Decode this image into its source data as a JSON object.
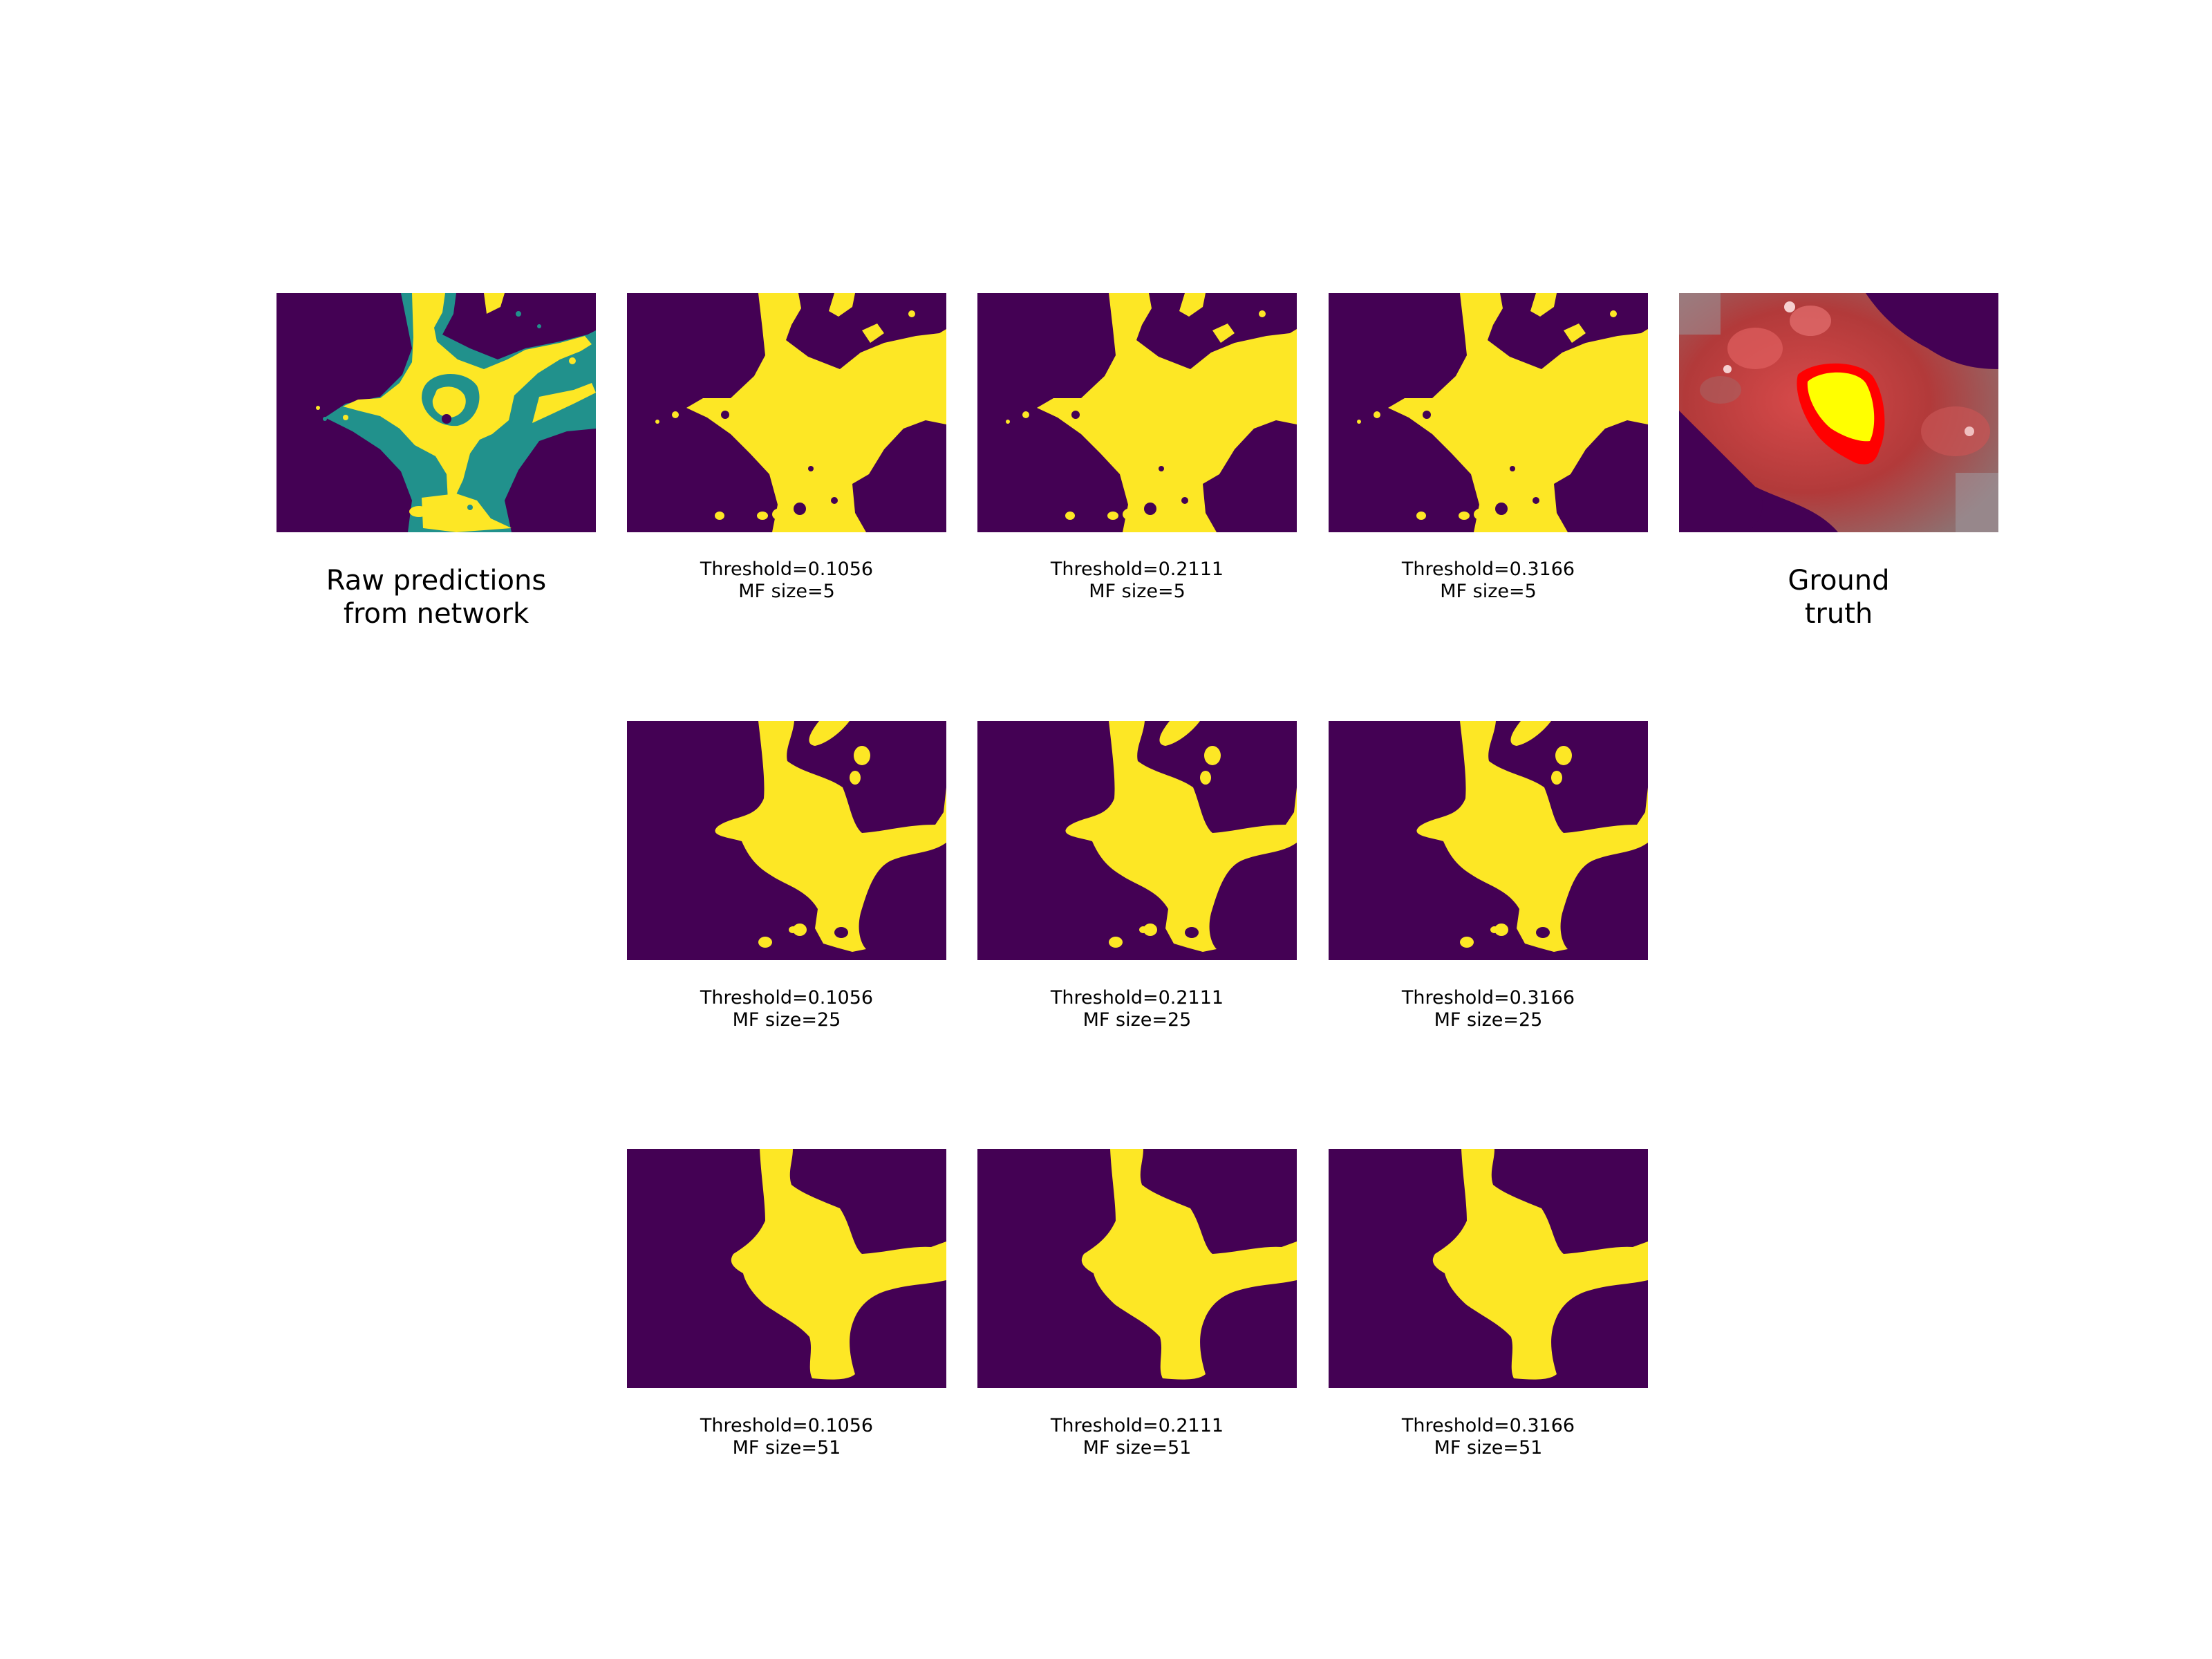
{
  "colors": {
    "background": "#440154",
    "foreground": "#fde725",
    "mid": "#21918c",
    "gt_outline": "#ff0000",
    "gt_fill": "#ffff00"
  },
  "raw_panel": {
    "caption_line1": "Raw predictions",
    "caption_line2": "from network"
  },
  "gt_panel": {
    "caption_line1": "Ground",
    "caption_line2": "truth"
  },
  "rows": [
    {
      "mf_label": "MF size=5",
      "cells": [
        {
          "threshold_label": "Threshold=0.1056"
        },
        {
          "threshold_label": "Threshold=0.2111"
        },
        {
          "threshold_label": "Threshold=0.3166"
        }
      ]
    },
    {
      "mf_label": "MF size=25",
      "cells": [
        {
          "threshold_label": "Threshold=0.1056"
        },
        {
          "threshold_label": "Threshold=0.2111"
        },
        {
          "threshold_label": "Threshold=0.3166"
        }
      ]
    },
    {
      "mf_label": "MF size=51",
      "cells": [
        {
          "threshold_label": "Threshold=0.1056"
        },
        {
          "threshold_label": "Threshold=0.2111"
        },
        {
          "threshold_label": "Threshold=0.3166"
        }
      ]
    }
  ]
}
